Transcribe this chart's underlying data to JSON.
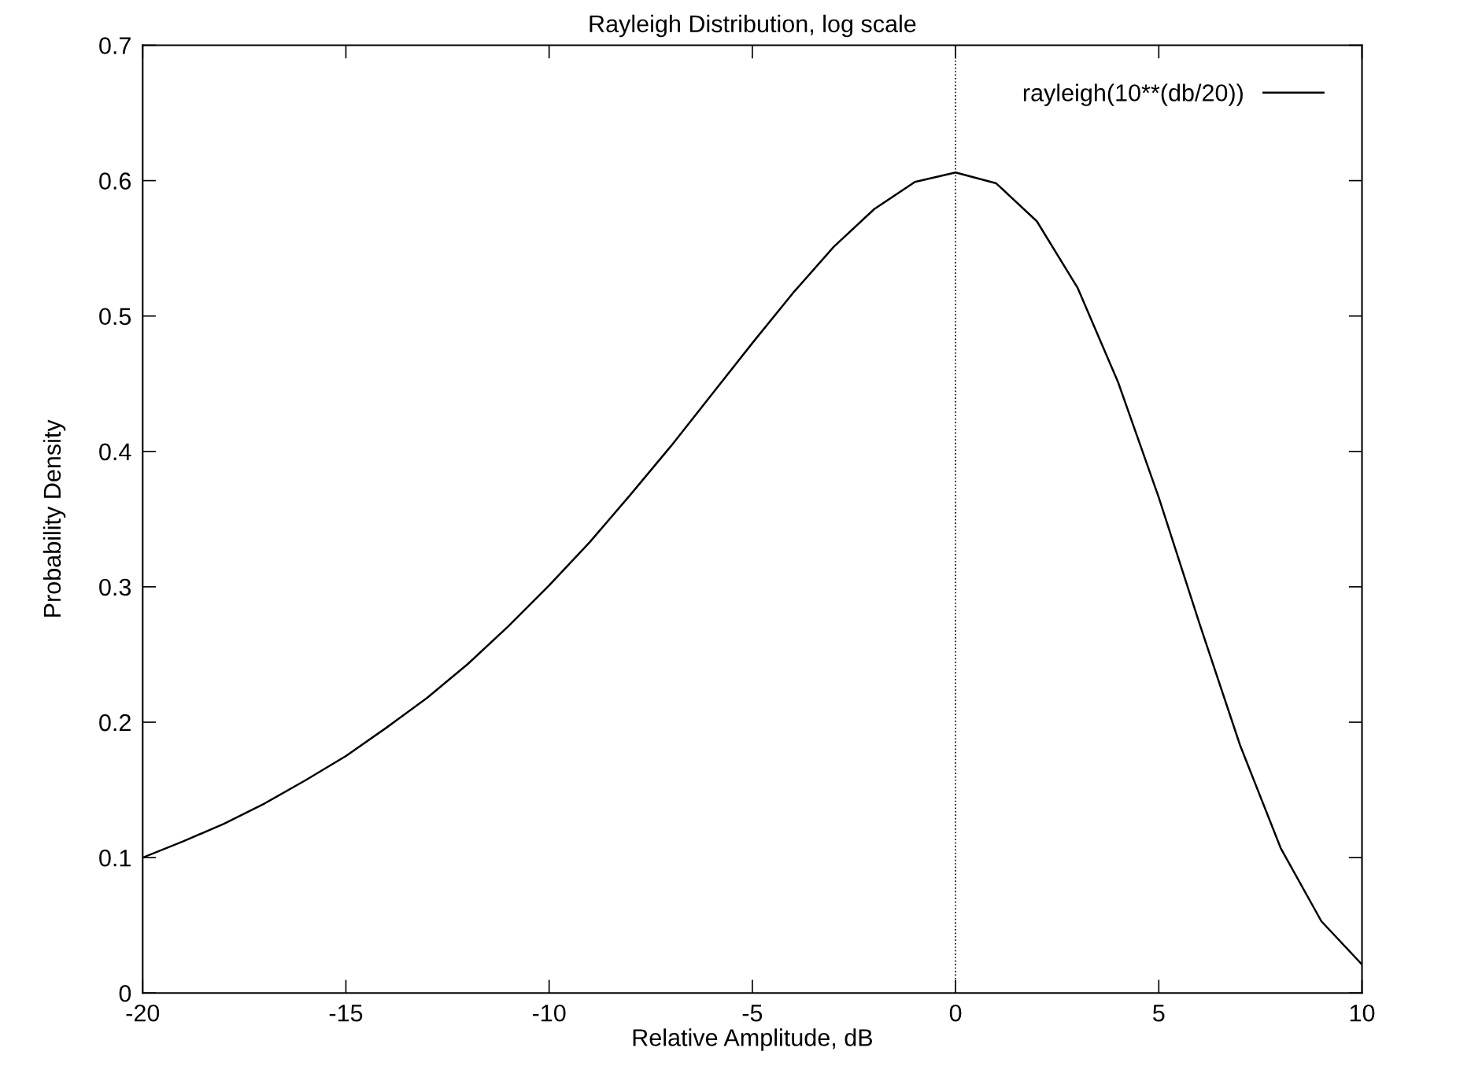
{
  "chart_data": {
    "type": "line",
    "title": "Rayleigh Distribution, log scale",
    "xlabel": "Relative Amplitude, dB",
    "ylabel": "Probability Density",
    "x": [
      -20,
      -19,
      -18,
      -17,
      -16,
      -15,
      -14,
      -13,
      -12,
      -11,
      -10,
      -9,
      -8,
      -7,
      -6,
      -5,
      -4,
      -3,
      -2,
      -1,
      0,
      1,
      2,
      3,
      4,
      5,
      6,
      7,
      8,
      9,
      10
    ],
    "series": [
      {
        "name": "rayleigh(10**(db/20))",
        "color": "#000000",
        "values": [
          0.1,
          0.112,
          0.125,
          0.14,
          0.157,
          0.175,
          0.196,
          0.218,
          0.243,
          0.271,
          0.301,
          0.333,
          0.368,
          0.404,
          0.442,
          0.48,
          0.517,
          0.551,
          0.579,
          0.599,
          0.606,
          0.598,
          0.57,
          0.521,
          0.451,
          0.366,
          0.273,
          0.183,
          0.107,
          0.053,
          0.021
        ]
      }
    ],
    "xlim": [
      -20,
      10
    ],
    "xticks": [
      -20,
      -15,
      -10,
      -5,
      0,
      5,
      10
    ],
    "ylim": [
      0,
      0.7
    ],
    "yticks": [
      0,
      0.1,
      0.2,
      0.3,
      0.4,
      0.5,
      0.6,
      0.7
    ],
    "ref_lines": [
      {
        "axis": "x",
        "value": 0,
        "color": "#000000",
        "line_style": "dotted"
      }
    ],
    "legend": "top right",
    "grid": false,
    "line_style": "solid",
    "marker": "none"
  }
}
